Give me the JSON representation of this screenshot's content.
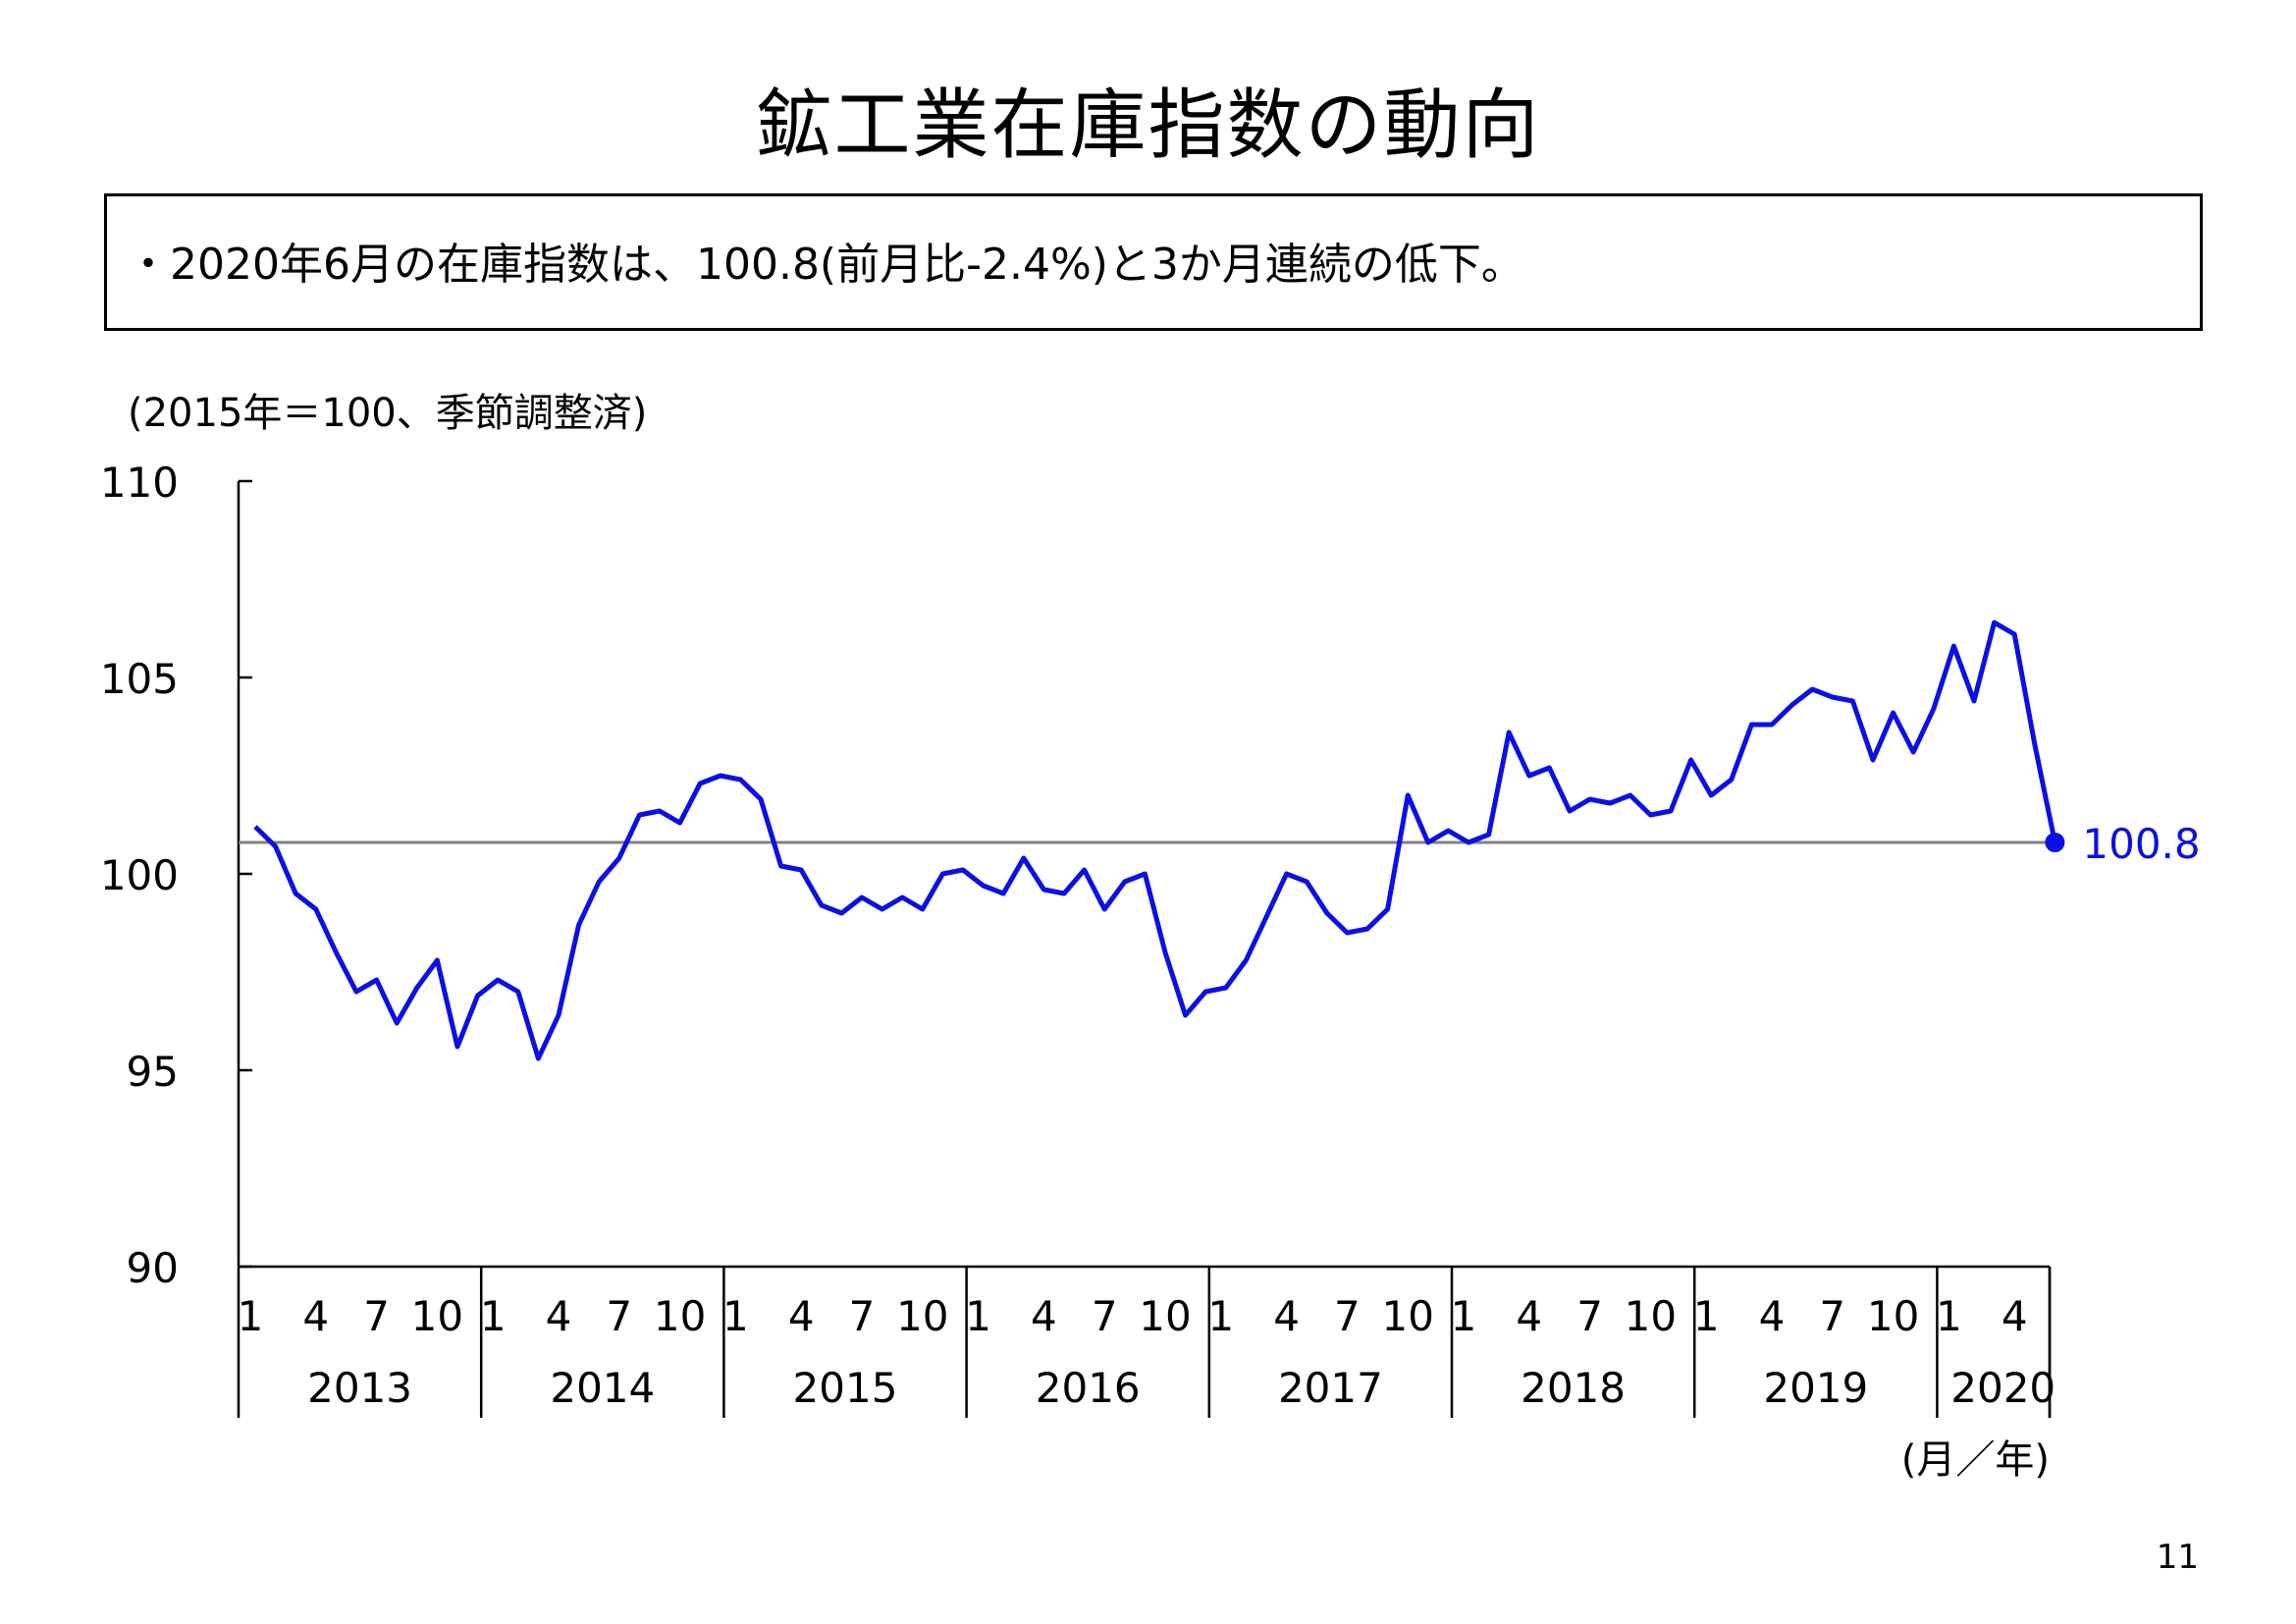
{
  "page_title": "鉱工業在庫指数の動向",
  "summary": "・2020年6月の在庫指数は、100.8(前月比-2.4%)と3か月連続の低下。",
  "page_number": "11",
  "colors": {
    "series": "#0a10e6",
    "reference_line": "#808080",
    "axis": "#000000"
  },
  "chart_data": {
    "type": "line",
    "unit_note": "(2015年＝100、季節調整済)",
    "xlabel": "(月／年)",
    "ylim": [
      90,
      110
    ],
    "yticks": [
      "90",
      "95",
      "100",
      "105",
      "110"
    ],
    "grid": false,
    "month_ticks": [
      "1",
      "4",
      "7",
      "10"
    ],
    "years": [
      "2013",
      "2014",
      "2015",
      "2016",
      "2017",
      "2018",
      "2019",
      "2020"
    ],
    "months_2020": 6,
    "reference_line": 100.8,
    "last_value_label": "100.8",
    "series": [
      {
        "values": [
          101.2,
          100.7,
          99.5,
          99.1,
          98.0,
          97.0,
          97.3,
          96.2,
          97.1,
          97.8,
          95.6,
          96.9,
          97.3,
          97.0,
          95.3,
          96.4,
          98.7,
          99.8,
          100.4,
          101.5,
          101.6,
          101.3,
          102.3,
          102.5,
          102.4,
          101.9,
          100.2,
          100.1,
          99.2,
          99.0,
          99.4,
          99.1,
          99.4,
          99.1,
          100.0,
          100.1,
          99.7,
          99.5,
          100.4,
          99.6,
          99.5,
          100.1,
          99.1,
          99.8,
          100.0,
          98.0,
          96.4,
          97.0,
          97.1,
          97.8,
          98.9,
          100.0,
          99.8,
          99.0,
          98.5,
          98.6,
          99.1,
          102.0,
          100.8,
          101.1,
          100.8,
          101.0,
          103.6,
          102.5,
          102.7,
          101.6,
          101.9,
          101.8,
          102.0,
          101.5,
          101.6,
          102.9,
          102.0,
          102.4,
          103.8,
          103.8,
          104.3,
          104.7,
          104.5,
          104.4,
          102.9,
          104.1,
          103.1,
          104.2,
          105.8,
          104.4,
          106.4,
          106.1,
          103.3,
          100.8
        ]
      }
    ]
  }
}
